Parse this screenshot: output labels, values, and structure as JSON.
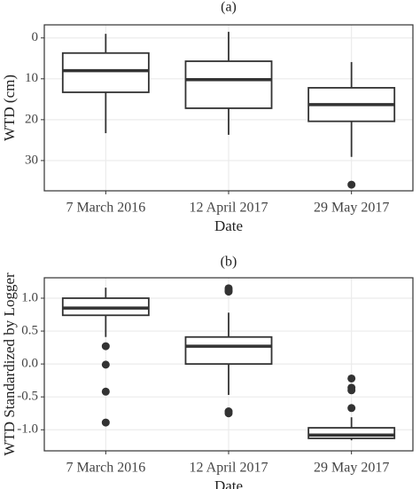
{
  "chart_data": [
    {
      "type": "box",
      "title": "(a)",
      "x_label": "Date",
      "y_label": "WTD (cm)",
      "categories": [
        "7 March 2016",
        "12 April 2017",
        "29 May 2017"
      ],
      "boxes": [
        {
          "whisker_low": -1,
          "q1": 3.7,
          "median": 8.0,
          "q3": 13.3,
          "whisker_high": 23.3,
          "outliers": []
        },
        {
          "whisker_low": -1.5,
          "q1": 5.7,
          "median": 10.2,
          "q3": 17.2,
          "whisker_high": 23.7,
          "outliers": []
        },
        {
          "whisker_low": 5.9,
          "q1": 12.2,
          "median": 16.3,
          "q3": 20.4,
          "whisker_high": 29.1,
          "outliers": [
            35.9
          ]
        }
      ],
      "ylim": [
        -3.2,
        37.4
      ],
      "y_reversed": true,
      "yticks": [
        0,
        10,
        20,
        30
      ],
      "grid": true,
      "box_color": "#333333",
      "fill": "#ffffff"
    },
    {
      "type": "box",
      "title": "(b)",
      "x_label": "Date",
      "y_label": "WTD Standardized by Logger",
      "categories": [
        "7 March 2016",
        "12 April 2017",
        "29 May 2017"
      ],
      "boxes": [
        {
          "whisker_low": 0.41,
          "q1": 0.74,
          "median": 0.85,
          "q3": 1.0,
          "whisker_high": 1.16,
          "outliers": [
            0.27,
            -0.01,
            -0.42,
            -0.89
          ]
        },
        {
          "whisker_low": -0.47,
          "q1": 0.0,
          "median": 0.27,
          "q3": 0.41,
          "whisker_high": 0.78,
          "outliers": [
            1.15,
            1.12,
            1.1,
            -0.72,
            -0.75
          ]
        },
        {
          "whisker_low": -1.16,
          "q1": -1.13,
          "median": -1.08,
          "q3": -0.97,
          "whisker_high": -0.81,
          "outliers": [
            -0.22,
            -0.36,
            -0.4,
            -0.67
          ]
        }
      ],
      "ylim": [
        -1.32,
        1.31
      ],
      "y_reversed": false,
      "yticks": [
        {
          "value": 1,
          "label": "1.0"
        },
        0.5,
        {
          "value": 0,
          "label": "0.0"
        },
        -0.5,
        {
          "value": -1,
          "label": "-1.0"
        }
      ],
      "grid": true,
      "box_color": "#333333",
      "fill": "#ffffff"
    }
  ]
}
